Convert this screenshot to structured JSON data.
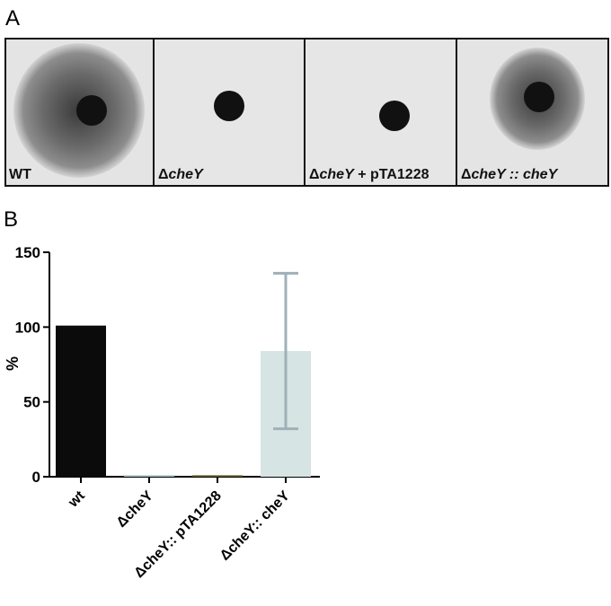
{
  "panel_a": {
    "label": "A",
    "plates": [
      [
        {
          "text": "WT"
        }
      ],
      [
        {
          "text": "Δ"
        },
        {
          "text": "cheY",
          "italic": true
        }
      ],
      [
        {
          "text": "Δ"
        },
        {
          "text": "cheY",
          "italic": true
        },
        {
          "text": " + pTA1228"
        }
      ],
      [
        {
          "text": "Δ"
        },
        {
          "text": "cheY :: cheY",
          "italic": true
        }
      ]
    ]
  },
  "panel_b": {
    "label": "B"
  },
  "chart_data": {
    "type": "bar",
    "ylabel": "%",
    "categories": [
      "wt",
      "ΔcheY",
      "ΔcheY:: pTA1228",
      "ΔcheY:: cheY"
    ],
    "values": [
      101,
      1,
      1,
      84
    ],
    "errors": [
      null,
      null,
      null,
      52
    ],
    "colors": [
      "#0b0b0b",
      "#a8c2cc",
      "#6e6224",
      "#d6e4e4"
    ],
    "error_color": "#9fb0b8",
    "ylim": [
      0,
      150
    ],
    "yticks": [
      0,
      50,
      100,
      150
    ]
  }
}
